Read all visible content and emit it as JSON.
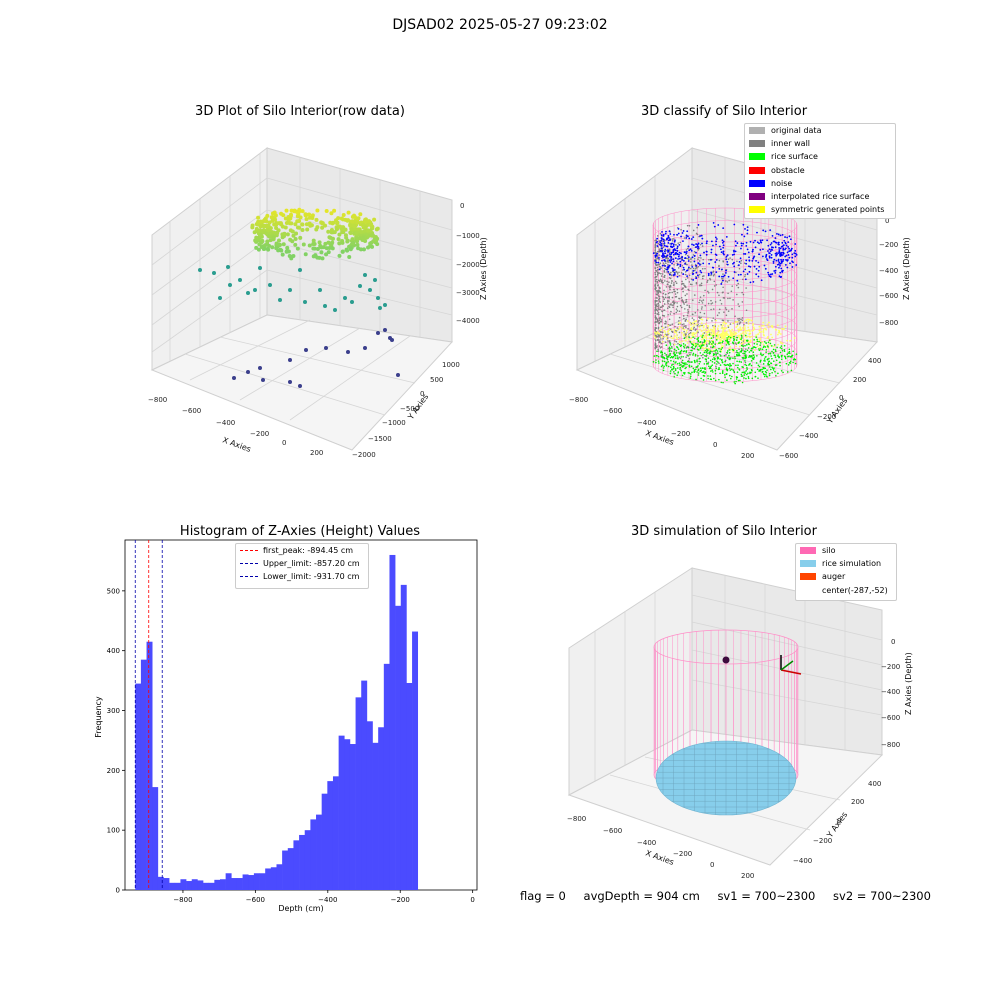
{
  "figure_title": "DJSAD02 2025-05-27 09:23:02",
  "panels": {
    "raw": {
      "title": "3D Plot of Silo Interior(row data)",
      "xlabel": "X Axies",
      "ylabel": "Y Axies",
      "zlabel": "Z Axies (Depth)",
      "xticks": [
        "−800",
        "−600",
        "−400",
        "−200",
        "0",
        "200"
      ],
      "yticks": [
        "1000",
        "500",
        "0",
        "−500",
        "−1000",
        "−1500",
        "−2000"
      ],
      "zticks": [
        "0",
        "−1000",
        "−2000",
        "−3000",
        "−4000"
      ]
    },
    "classify": {
      "title": "3D classify of Silo Interior",
      "xlabel": "X Axies",
      "ylabel": "Y Axies",
      "zlabel": "Z Axies (Depth)",
      "xticks": [
        "−800",
        "−600",
        "−400",
        "−200",
        "0",
        "200"
      ],
      "yticks": [
        "400",
        "200",
        "0",
        "−200",
        "−400",
        "−600"
      ],
      "zticks": [
        "0",
        "−200",
        "−400",
        "−600",
        "−800"
      ],
      "legend": [
        {
          "label": "original data",
          "color": "#b0b0b0"
        },
        {
          "label": "inner wall",
          "color": "#808080"
        },
        {
          "label": "rice surface",
          "color": "#00ff00"
        },
        {
          "label": "obstacle",
          "color": "#ff0000"
        },
        {
          "label": "noise",
          "color": "#0000ff"
        },
        {
          "label": "interpolated rice surface",
          "color": "#800080"
        },
        {
          "label": "symmetric generated points",
          "color": "#ffff00"
        }
      ]
    },
    "simulation": {
      "title": "3D simulation of Silo Interior",
      "xlabel": "X Axies",
      "ylabel": "Y Axies",
      "zlabel": "Z Axies (Depth)",
      "xticks": [
        "−800",
        "−600",
        "−400",
        "−200",
        "0",
        "200"
      ],
      "yticks": [
        "400",
        "200",
        "0",
        "−200",
        "−400"
      ],
      "zticks": [
        "0",
        "−200",
        "−400",
        "−600",
        "−800"
      ],
      "legend": [
        {
          "label": "silo",
          "color": "#ff69b4"
        },
        {
          "label": "rice simulation",
          "color": "#87ceeb"
        },
        {
          "label": "auger",
          "color": "#ff4500"
        },
        {
          "label": "center(-287,-52)",
          "color": ""
        }
      ]
    }
  },
  "chart_data": {
    "type": "bar",
    "title": "Histogram of Z-Axies (Height) Values",
    "xlabel": "Depth (cm)",
    "ylabel": "Frequency",
    "xlim": [
      -960,
      12
    ],
    "ylim": [
      0,
      585
    ],
    "bin_start": -931.7,
    "bin_width": 15.6,
    "values": [
      345,
      385,
      415,
      172,
      22,
      20,
      12,
      12,
      18,
      15,
      18,
      16,
      12,
      12,
      17,
      18,
      28,
      20,
      20,
      26,
      25,
      28,
      28,
      36,
      38,
      43,
      66,
      70,
      83,
      92,
      100,
      118,
      126,
      161,
      182,
      190,
      258,
      252,
      244,
      322,
      350,
      282,
      246,
      272,
      378,
      560,
      475,
      510,
      346,
      432
    ],
    "xticks": [
      -800,
      -600,
      -400,
      -200,
      0
    ],
    "yticks": [
      0,
      100,
      200,
      300,
      400,
      500
    ],
    "vlines": [
      {
        "label": "first_peak: -894.45 cm",
        "x": -894.45,
        "color": "#ff0000"
      },
      {
        "label": "Upper_limit: -857.20 cm",
        "x": -857.2,
        "color": "#0000aa"
      },
      {
        "label": "Lower_limit: -931.70 cm",
        "x": -931.7,
        "color": "#0000aa"
      }
    ],
    "bar_color": "#4b4bff"
  },
  "status": {
    "flag": "flag = 0",
    "avg_depth": "avgDepth = 904 cm",
    "sv1": "sv1 = 700~2300",
    "sv2": "sv2 = 700~2300"
  }
}
